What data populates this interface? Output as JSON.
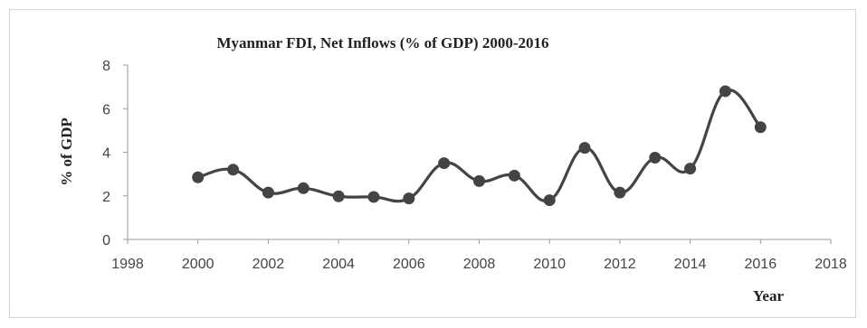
{
  "chart_data": {
    "type": "line",
    "title": "Myanmar FDI, Net Inflows (% of GDP) 2000-2016",
    "xlabel": "Year",
    "ylabel": "% of GDP",
    "xlim": [
      1998,
      2018
    ],
    "ylim": [
      0,
      8
    ],
    "xticks": [
      1998,
      2000,
      2002,
      2004,
      2006,
      2008,
      2010,
      2012,
      2014,
      2016,
      2018
    ],
    "yticks": [
      0,
      2,
      4,
      6,
      8
    ],
    "grid": false,
    "legend": "none",
    "series": [
      {
        "color": "#444444",
        "x": [
          2000,
          2001,
          2002,
          2003,
          2004,
          2005,
          2006,
          2007,
          2008,
          2009,
          2010,
          2011,
          2012,
          2013,
          2014,
          2015,
          2016
        ],
        "values": [
          2.85,
          3.2,
          2.15,
          2.35,
          1.98,
          1.95,
          1.88,
          3.5,
          2.68,
          2.93,
          1.8,
          4.2,
          2.15,
          3.75,
          3.25,
          6.8,
          5.15
        ]
      }
    ]
  }
}
